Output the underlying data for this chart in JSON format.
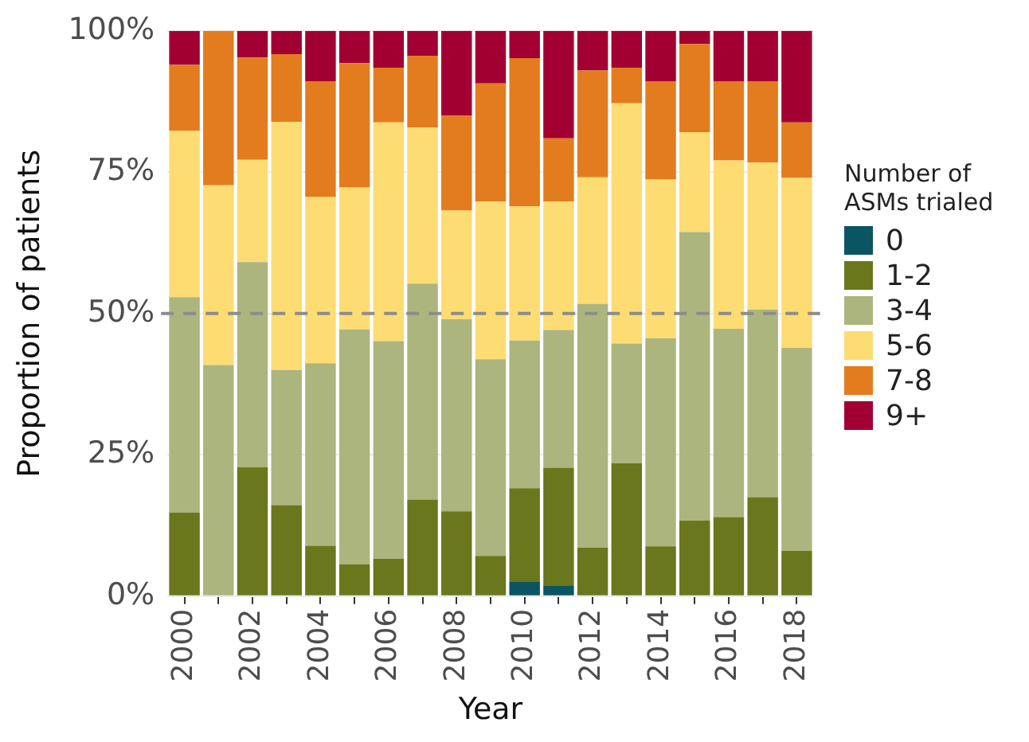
{
  "chart_data": {
    "type": "bar",
    "stacked": true,
    "xlabel": "Year",
    "ylabel": "Proportion of patients",
    "legend_title": "Number of ASMs trialed",
    "legend": "right",
    "grid": true,
    "categories": [
      "2000",
      null,
      "2002",
      null,
      "2004",
      null,
      "2006",
      null,
      "2008",
      null,
      "2010",
      null,
      "2012",
      null,
      "2014",
      null,
      "2016",
      null,
      "2018"
    ],
    "ylim": [
      0,
      100
    ],
    "yticks": [
      {
        "value": 0,
        "label": "0%"
      },
      {
        "value": 25,
        "label": "25%"
      },
      {
        "value": 50,
        "label": "50%"
      },
      {
        "value": 75,
        "label": "75%"
      },
      {
        "value": 100,
        "label": "100%"
      }
    ],
    "ref_lines": [
      {
        "axis": "y",
        "value": 50,
        "color": "#8c8c8c",
        "line_style": "dashed"
      }
    ],
    "series": [
      {
        "name": "0",
        "color": "#0b5563",
        "values": [
          0,
          0,
          0,
          0,
          0,
          0,
          0,
          0,
          0,
          0,
          2.5,
          1.9,
          0,
          0,
          0,
          0,
          0,
          0,
          0
        ]
      },
      {
        "name": "1-2",
        "color": "#6b771c",
        "values": [
          14.8,
          0,
          22.8,
          16.1,
          8.9,
          5.6,
          6.6,
          17.1,
          15.0,
          7.1,
          16.6,
          20.8,
          8.6,
          23.5,
          8.8,
          13.4,
          14.0,
          17.5,
          8.0
        ]
      },
      {
        "name": "3-4",
        "color": "#acb57e",
        "values": [
          38.1,
          40.9,
          36.3,
          23.9,
          32.3,
          41.6,
          38.5,
          38.2,
          34.0,
          34.8,
          26.1,
          24.4,
          43.1,
          21.2,
          36.8,
          51.0,
          33.3,
          33.2,
          35.9
        ]
      },
      {
        "name": "5-6",
        "color": "#fddc73",
        "values": [
          29.4,
          31.8,
          18.1,
          43.9,
          29.4,
          25.1,
          38.7,
          27.6,
          19.2,
          27.9,
          23.8,
          22.7,
          22.4,
          42.5,
          28.1,
          17.7,
          29.8,
          26.0,
          30.1
        ]
      },
      {
        "name": "7-8",
        "color": "#e37c1e",
        "values": [
          11.7,
          27.3,
          18.1,
          12.0,
          20.5,
          22.0,
          9.7,
          12.7,
          16.8,
          20.9,
          26.2,
          11.2,
          18.9,
          6.3,
          17.4,
          15.6,
          14.0,
          14.4,
          9.8
        ]
      },
      {
        "name": "9+",
        "color": "#a20032",
        "values": [
          6.0,
          0,
          4.7,
          4.1,
          8.9,
          5.7,
          6.5,
          4.4,
          15.0,
          9.3,
          4.8,
          19.0,
          7.0,
          6.5,
          8.9,
          2.3,
          8.9,
          8.9,
          16.2
        ]
      }
    ]
  }
}
